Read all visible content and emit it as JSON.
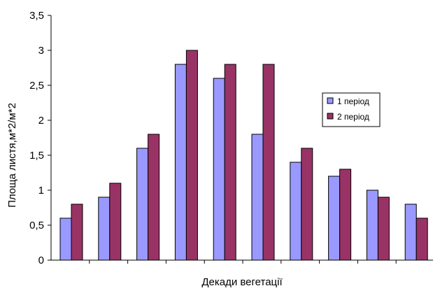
{
  "chart_data": {
    "type": "bar",
    "title": "",
    "xlabel": "Декади вегетації",
    "ylabel": "Площа листя,м*2/м*2",
    "categories": [
      "",
      "",
      "",
      "",
      "",
      "",
      "",
      "",
      "",
      ""
    ],
    "ylim": [
      0,
      3.5
    ],
    "ytick_labels": [
      "0",
      "0,5",
      "1",
      "1,5",
      "2",
      "2,5",
      "3",
      "3,5"
    ],
    "ytick_values": [
      0,
      0.5,
      1,
      1.5,
      2,
      2.5,
      3,
      3.5
    ],
    "grid": false,
    "legend_position": "right",
    "series": [
      {
        "name": "1 період",
        "color": "#9999ff",
        "values": [
          0.6,
          0.9,
          1.6,
          2.8,
          2.6,
          1.8,
          1.4,
          1.2,
          1.0,
          0.8
        ]
      },
      {
        "name": "2 період",
        "color": "#993366",
        "values": [
          0.8,
          1.1,
          1.8,
          3.0,
          2.8,
          2.8,
          1.6,
          1.3,
          0.9,
          0.6
        ]
      }
    ]
  }
}
